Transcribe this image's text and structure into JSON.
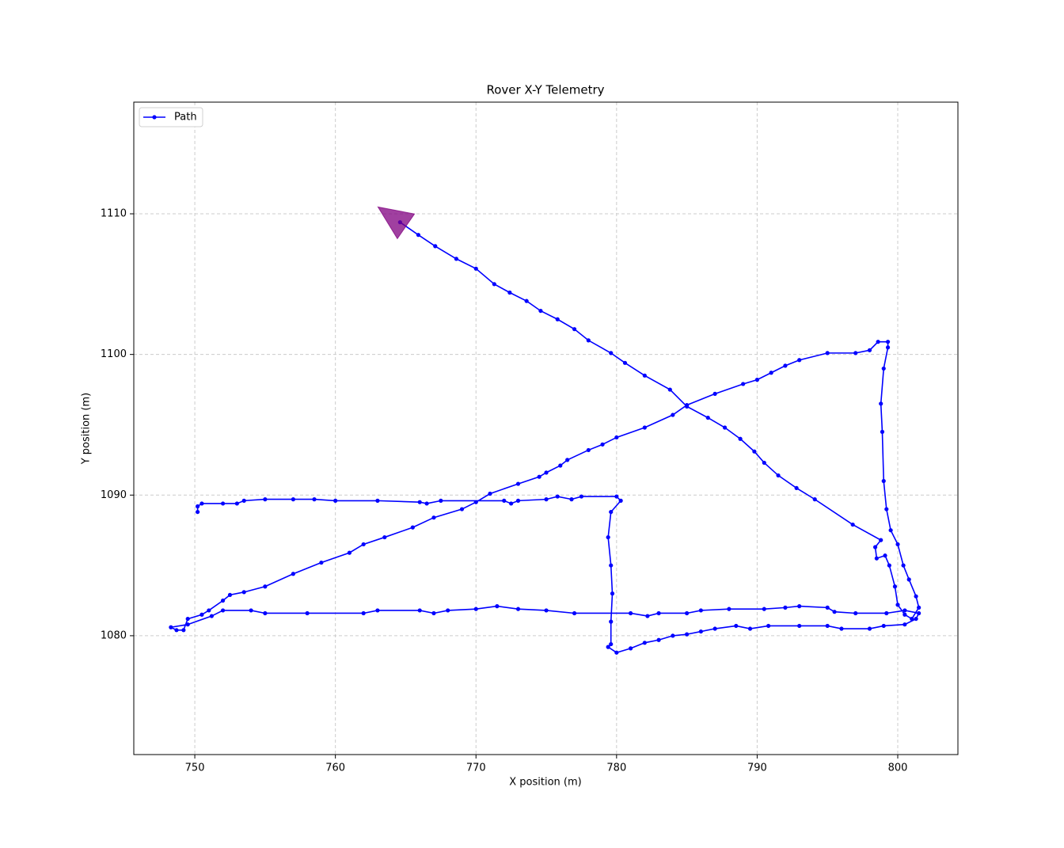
{
  "chart_data": {
    "type": "line",
    "title": "Rover X-Y Telemetry",
    "x_label": "X position (m)",
    "y_label": "Y position (m)",
    "x": [
      750.2,
      750.2,
      750.5,
      752,
      753,
      753.5,
      755,
      757,
      758.5,
      760,
      763,
      766,
      766.5,
      767.5,
      772,
      772.5,
      773,
      775,
      775.8,
      776.8,
      777.5,
      780,
      780.3,
      779.6,
      779.4,
      779.6,
      779.7,
      779.6,
      779.6,
      779.4,
      780,
      781,
      782,
      783,
      784,
      785,
      786,
      787,
      788.5,
      789.5,
      790.8,
      793,
      795,
      796,
      798,
      799,
      800.5,
      801.3,
      801.5,
      800.5,
      799.2,
      797,
      795.5,
      795,
      793,
      792,
      790.5,
      788,
      786,
      785,
      783,
      782.2,
      781,
      777,
      775,
      773,
      771.5,
      770,
      768,
      767,
      766,
      763,
      762,
      758,
      755,
      754,
      752,
      751.2,
      749.5,
      748.3,
      748.7,
      749.2,
      749.5,
      750.5,
      751,
      752,
      752.5,
      753.5,
      755,
      757,
      759,
      761,
      762,
      763.5,
      765.5,
      767,
      769,
      770,
      771,
      773,
      774.5,
      775,
      776,
      776.5,
      778,
      779,
      780,
      782,
      784,
      785,
      787,
      789,
      790,
      791,
      792,
      793,
      795,
      797,
      798,
      798.6,
      799.3,
      799.3,
      799,
      798.8,
      798.9,
      799,
      799.2,
      799.5,
      800,
      800.4,
      800.8,
      801.3,
      801.5,
      801,
      800.5,
      800,
      799.8,
      799.4,
      799.1,
      798.5,
      798.4,
      798.8,
      796.8,
      794.1,
      792.8,
      791.5,
      790.5,
      789.8,
      788.8,
      787.7,
      786.5,
      785,
      783.8,
      782,
      780.6,
      779.6,
      778,
      777,
      775.8,
      774.6,
      773.6,
      772.4,
      771.3,
      770,
      768.6,
      767.1,
      765.9,
      764.6
    ],
    "series": [
      {
        "name": "Path",
        "color": "#0000ff",
        "values": [
          1088.8,
          1089.2,
          1089.4,
          1089.4,
          1089.4,
          1089.6,
          1089.7,
          1089.7,
          1089.7,
          1089.6,
          1089.6,
          1089.5,
          1089.4,
          1089.6,
          1089.6,
          1089.4,
          1089.6,
          1089.7,
          1089.9,
          1089.7,
          1089.9,
          1089.9,
          1089.6,
          1088.8,
          1087,
          1085,
          1083,
          1081,
          1079.4,
          1079.2,
          1078.8,
          1079.1,
          1079.5,
          1079.7,
          1080,
          1080.1,
          1080.3,
          1080.5,
          1080.7,
          1080.5,
          1080.7,
          1080.7,
          1080.7,
          1080.5,
          1080.5,
          1080.7,
          1080.8,
          1081.2,
          1081.6,
          1081.8,
          1081.6,
          1081.6,
          1081.7,
          1082,
          1082.1,
          1082,
          1081.9,
          1081.9,
          1081.8,
          1081.6,
          1081.6,
          1081.4,
          1081.6,
          1081.6,
          1081.8,
          1081.9,
          1082.1,
          1081.9,
          1081.8,
          1081.6,
          1081.8,
          1081.8,
          1081.6,
          1081.6,
          1081.6,
          1081.8,
          1081.8,
          1081.4,
          1080.8,
          1080.6,
          1080.4,
          1080.4,
          1081.2,
          1081.5,
          1081.8,
          1082.5,
          1082.9,
          1083.1,
          1083.5,
          1084.4,
          1085.2,
          1085.9,
          1086.5,
          1087,
          1087.7,
          1088.4,
          1089,
          1089.5,
          1090.1,
          1090.8,
          1091.3,
          1091.6,
          1092.1,
          1092.5,
          1093.2,
          1093.6,
          1094.1,
          1094.8,
          1095.7,
          1096.4,
          1097.2,
          1097.9,
          1098.2,
          1098.7,
          1099.2,
          1099.6,
          1100.1,
          1100.1,
          1100.3,
          1100.9,
          1100.9,
          1100.5,
          1099,
          1096.5,
          1094.5,
          1091,
          1089,
          1087.5,
          1086.5,
          1085,
          1084,
          1082.8,
          1082,
          1081.2,
          1081.5,
          1082.2,
          1083.5,
          1085,
          1085.7,
          1085.5,
          1086.3,
          1086.8,
          1087.9,
          1089.7,
          1090.5,
          1091.4,
          1092.3,
          1093.1,
          1094,
          1094.8,
          1095.5,
          1096.3,
          1097.5,
          1098.5,
          1099.4,
          1100.1,
          1101,
          1101.8,
          1102.5,
          1103.1,
          1103.8,
          1104.4,
          1105,
          1106.1,
          1106.8,
          1107.7,
          1108.5,
          1109.4
        ]
      }
    ],
    "xlim": [
      745.66,
      804.28
    ],
    "ylim": [
      1071.55,
      1117.94
    ],
    "xticks": [
      750,
      760,
      770,
      780,
      790,
      800
    ],
    "yticks": [
      1080,
      1090,
      1100,
      1110
    ],
    "grid": true,
    "legend": "upper left",
    "arrow_color": "#800080"
  }
}
